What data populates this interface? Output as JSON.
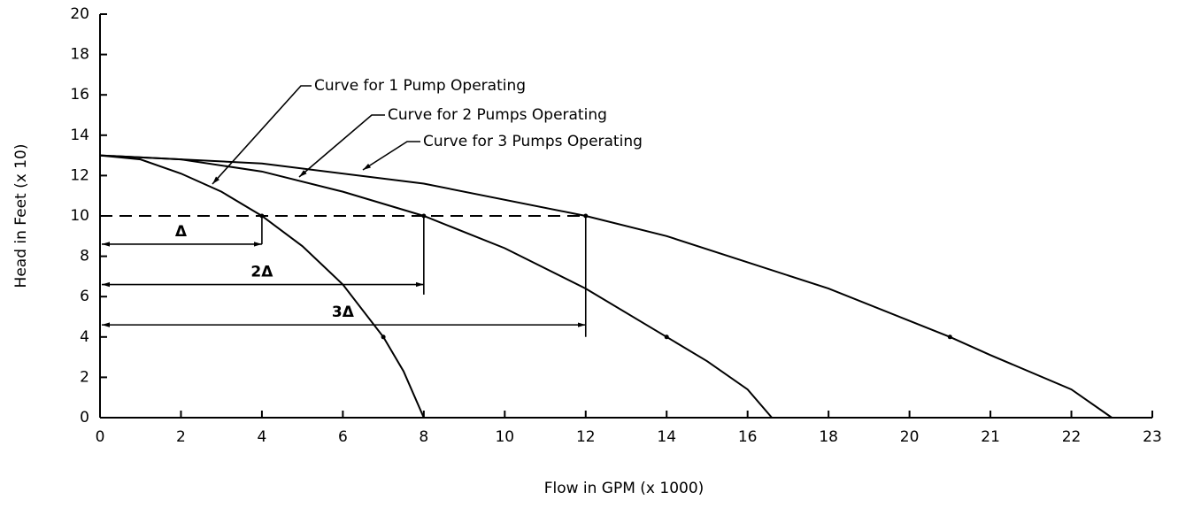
{
  "chart_data": {
    "type": "line",
    "xlabel": "Flow in GPM (x 1000)",
    "ylabel": "Head in Feet (x 10)",
    "xticks": [
      0,
      2,
      4,
      6,
      8,
      10,
      12,
      14,
      16,
      18,
      20,
      21,
      22,
      23
    ],
    "xlim": [
      0,
      23
    ],
    "ylim": [
      0,
      20
    ],
    "yticks": [
      0,
      2,
      4,
      6,
      8,
      10,
      12,
      14,
      16,
      18,
      20
    ],
    "series": [
      {
        "name": "Curve for 1 Pump Operating",
        "color": "#000000",
        "x": [
          0,
          1,
          2,
          3,
          4,
          5,
          6,
          7,
          7.5,
          8
        ],
        "values": [
          13,
          12.8,
          12.1,
          11.2,
          10,
          8.5,
          6.6,
          4,
          2.3,
          0
        ]
      },
      {
        "name": "Curve for 2 Pumps Operating",
        "color": "#000000",
        "x": [
          0,
          2,
          4,
          6,
          8,
          10,
          12,
          14,
          15,
          16,
          16.6
        ],
        "values": [
          13,
          12.8,
          12.2,
          11.2,
          10,
          8.4,
          6.4,
          4,
          2.8,
          1.4,
          0
        ]
      },
      {
        "name": "Curve for 3 Pumps Operating",
        "color": "#000000",
        "x": [
          0,
          4,
          8,
          12,
          14,
          16,
          18,
          20,
          20.5,
          21,
          22,
          22.5
        ],
        "values": [
          13,
          12.6,
          11.6,
          10,
          9,
          7.7,
          6.4,
          4.8,
          4,
          3.1,
          1.4,
          0
        ]
      }
    ],
    "reference_points": {
      "x": [
        4,
        8,
        12,
        7,
        14,
        20.5
      ],
      "y": [
        10,
        10,
        10,
        4,
        4,
        4
      ]
    },
    "reference_line": {
      "y": 10,
      "x": [
        0,
        12
      ]
    },
    "dimensions": [
      {
        "label": "Δ",
        "x": [
          0,
          4
        ],
        "y": 8.6,
        "drop_to": 8.6
      },
      {
        "label": "2Δ",
        "x": [
          0,
          8
        ],
        "y": 6.6,
        "drop_to": 6.1
      },
      {
        "label": "3Δ",
        "x": [
          0,
          12
        ],
        "y": 4.6,
        "drop_to": 4
      }
    ]
  }
}
